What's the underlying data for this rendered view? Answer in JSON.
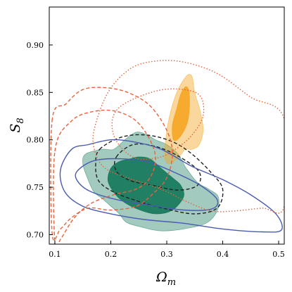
{
  "chart_data": {
    "type": "contour",
    "title": "",
    "xlabel": "Ω",
    "xlabel_sub": "m",
    "ylabel": "S",
    "ylabel_sub": "8",
    "xlim": [
      0.09,
      0.51
    ],
    "ylim": [
      0.69,
      0.94
    ],
    "xticks": [
      {
        "value": 0.1,
        "label": "0.1"
      },
      {
        "value": 0.2,
        "label": "0.2"
      },
      {
        "value": 0.3,
        "label": "0.3"
      },
      {
        "value": 0.4,
        "label": "0.4"
      },
      {
        "value": 0.5,
        "label": "0.5"
      }
    ],
    "yticks": [
      {
        "value": 0.7,
        "label": "0.70"
      },
      {
        "value": 0.75,
        "label": "0.75"
      },
      {
        "value": 0.8,
        "label": "0.80"
      },
      {
        "value": 0.85,
        "label": "0.85"
      },
      {
        "value": 0.9,
        "label": "0.90"
      }
    ],
    "grid": false,
    "legend": "none",
    "series": [
      {
        "id": "green-filled",
        "style": "filled",
        "color": "#1a7a5e",
        "contours": [
          {
            "level": "outer",
            "opacity": 0.4,
            "points": [
              [
                0.205,
                0.79
              ],
              [
                0.185,
                0.79
              ],
              [
                0.155,
                0.785
              ],
              [
                0.15,
                0.775
              ],
              [
                0.158,
                0.76
              ],
              [
                0.17,
                0.745
              ],
              [
                0.185,
                0.738
              ],
              [
                0.2,
                0.73
              ],
              [
                0.215,
                0.722
              ],
              [
                0.228,
                0.713
              ],
              [
                0.255,
                0.708
              ],
              [
                0.29,
                0.704
              ],
              [
                0.33,
                0.706
              ],
              [
                0.37,
                0.712
              ],
              [
                0.39,
                0.725
              ],
              [
                0.392,
                0.74
              ],
              [
                0.375,
                0.748
              ],
              [
                0.355,
                0.755
              ],
              [
                0.335,
                0.77
              ],
              [
                0.32,
                0.785
              ],
              [
                0.3,
                0.795
              ],
              [
                0.28,
                0.8
              ],
              [
                0.262,
                0.806
              ],
              [
                0.245,
                0.808
              ],
              [
                0.225,
                0.8
              ]
            ]
          },
          {
            "level": "inner",
            "opacity": 0.95,
            "points": [
              [
                0.235,
                0.78
              ],
              [
                0.215,
                0.777
              ],
              [
                0.2,
                0.77
              ],
              [
                0.195,
                0.757
              ],
              [
                0.205,
                0.745
              ],
              [
                0.222,
                0.735
              ],
              [
                0.248,
                0.727
              ],
              [
                0.28,
                0.722
              ],
              [
                0.31,
                0.726
              ],
              [
                0.33,
                0.74
              ],
              [
                0.325,
                0.752
              ],
              [
                0.31,
                0.76
              ],
              [
                0.29,
                0.77
              ],
              [
                0.27,
                0.78
              ],
              [
                0.25,
                0.782
              ]
            ]
          }
        ]
      },
      {
        "id": "orange-filled",
        "style": "filled",
        "color": "#f5a623",
        "contours": [
          {
            "level": "outer",
            "opacity": 0.45,
            "points": [
              [
                0.335,
                0.867
              ],
              [
                0.345,
                0.867
              ],
              [
                0.35,
                0.85
              ],
              [
                0.36,
                0.83
              ],
              [
                0.365,
                0.81
              ],
              [
                0.358,
                0.795
              ],
              [
                0.345,
                0.79
              ],
              [
                0.333,
                0.79
              ],
              [
                0.322,
                0.782
              ],
              [
                0.305,
                0.775
              ],
              [
                0.297,
                0.78
              ],
              [
                0.298,
                0.8
              ],
              [
                0.305,
                0.825
              ],
              [
                0.318,
                0.85
              ]
            ]
          },
          {
            "level": "inner",
            "opacity": 0.9,
            "points": [
              [
                0.334,
                0.856
              ],
              [
                0.34,
                0.85
              ],
              [
                0.34,
                0.83
              ],
              [
                0.335,
                0.815
              ],
              [
                0.322,
                0.802
              ],
              [
                0.312,
                0.8
              ],
              [
                0.31,
                0.815
              ],
              [
                0.318,
                0.833
              ],
              [
                0.325,
                0.848
              ]
            ]
          }
        ]
      },
      {
        "id": "black-dashed",
        "style": "dashed",
        "color": "#222222",
        "contours": [
          {
            "level": "outer",
            "points": [
              [
                0.18,
                0.79
              ],
              [
                0.22,
                0.803
              ],
              [
                0.265,
                0.805
              ],
              [
                0.31,
                0.798
              ],
              [
                0.345,
                0.785
              ],
              [
                0.38,
                0.765
              ],
              [
                0.4,
                0.748
              ],
              [
                0.39,
                0.728
              ],
              [
                0.35,
                0.722
              ],
              [
                0.3,
                0.727
              ],
              [
                0.25,
                0.735
              ],
              [
                0.205,
                0.745
              ],
              [
                0.178,
                0.757
              ],
              [
                0.173,
                0.775
              ]
            ]
          },
          {
            "level": "inner",
            "points": [
              [
                0.21,
                0.782
              ],
              [
                0.24,
                0.795
              ],
              [
                0.28,
                0.793
              ],
              [
                0.32,
                0.783
              ],
              [
                0.357,
                0.767
              ],
              [
                0.355,
                0.752
              ],
              [
                0.32,
                0.747
              ],
              [
                0.275,
                0.752
              ],
              [
                0.235,
                0.757
              ],
              [
                0.21,
                0.767
              ]
            ]
          }
        ]
      },
      {
        "id": "blue-solid",
        "style": "solid",
        "color": "#4a5cb0",
        "contours": [
          {
            "level": "outer",
            "points": [
              [
                0.13,
                0.79
              ],
              [
                0.16,
                0.795
              ],
              [
                0.2,
                0.8
              ],
              [
                0.24,
                0.798
              ],
              [
                0.29,
                0.79
              ],
              [
                0.345,
                0.772
              ],
              [
                0.4,
                0.758
              ],
              [
                0.45,
                0.742
              ],
              [
                0.495,
                0.722
              ],
              [
                0.505,
                0.705
              ],
              [
                0.47,
                0.703
              ],
              [
                0.4,
                0.706
              ],
              [
                0.33,
                0.712
              ],
              [
                0.26,
                0.716
              ],
              [
                0.2,
                0.722
              ],
              [
                0.15,
                0.73
              ],
              [
                0.118,
                0.745
              ],
              [
                0.11,
                0.768
              ]
            ]
          },
          {
            "level": "inner",
            "points": [
              [
                0.14,
                0.767
              ],
              [
                0.17,
                0.778
              ],
              [
                0.22,
                0.78
              ],
              [
                0.27,
                0.776
              ],
              [
                0.32,
                0.764
              ],
              [
                0.36,
                0.752
              ],
              [
                0.39,
                0.737
              ],
              [
                0.38,
                0.727
              ],
              [
                0.33,
                0.726
              ],
              [
                0.27,
                0.731
              ],
              [
                0.21,
                0.737
              ],
              [
                0.162,
                0.746
              ],
              [
                0.14,
                0.757
              ]
            ]
          }
        ]
      },
      {
        "id": "red-dotted",
        "style": "dotted",
        "color": "#e8633d",
        "contours": [
          {
            "level": "outer",
            "points": [
              [
                0.17,
                0.81
              ],
              [
                0.195,
                0.85
              ],
              [
                0.235,
                0.875
              ],
              [
                0.28,
                0.883
              ],
              [
                0.33,
                0.882
              ],
              [
                0.39,
                0.87
              ],
              [
                0.45,
                0.845
              ],
              [
                0.51,
                0.822
              ],
              [
                0.51,
                0.73
              ],
              [
                0.47,
                0.728
              ],
              [
                0.42,
                0.725
              ],
              [
                0.38,
                0.725
              ],
              [
                0.335,
                0.735
              ],
              [
                0.29,
                0.748
              ],
              [
                0.23,
                0.76
              ],
              [
                0.19,
                0.77
              ],
              [
                0.172,
                0.787
              ]
            ]
          },
          {
            "level": "inner",
            "points": [
              [
                0.205,
                0.826
              ],
              [
                0.23,
                0.84
              ],
              [
                0.285,
                0.852
              ],
              [
                0.33,
                0.853
              ],
              [
                0.36,
                0.846
              ],
              [
                0.365,
                0.825
              ],
              [
                0.345,
                0.805
              ],
              [
                0.32,
                0.792
              ],
              [
                0.29,
                0.782
              ],
              [
                0.25,
                0.78
              ],
              [
                0.225,
                0.788
              ],
              [
                0.205,
                0.805
              ]
            ]
          }
        ]
      },
      {
        "id": "red-dashed",
        "style": "dashed",
        "color": "#e8633d",
        "contours": [
          {
            "level": "outer",
            "points": [
              [
                0.095,
                0.82
              ],
              [
                0.12,
                0.838
              ],
              [
                0.15,
                0.853
              ],
              [
                0.19,
                0.855
              ],
              [
                0.23,
                0.85
              ],
              [
                0.27,
                0.836
              ],
              [
                0.3,
                0.81
              ],
              [
                0.31,
                0.785
              ],
              [
                0.3,
                0.76
              ],
              [
                0.275,
                0.743
              ],
              [
                0.245,
                0.73
              ],
              [
                0.2,
                0.726
              ],
              [
                0.16,
                0.728
              ],
              [
                0.13,
                0.718
              ],
              [
                0.11,
                0.706
              ],
              [
                0.095,
                0.702
              ]
            ]
          },
          {
            "level": "inner",
            "points": [
              [
                0.1,
                0.788
              ],
              [
                0.13,
                0.82
              ],
              [
                0.17,
                0.83
              ],
              [
                0.21,
                0.83
              ],
              [
                0.245,
                0.82
              ],
              [
                0.27,
                0.8
              ],
              [
                0.28,
                0.78
              ],
              [
                0.27,
                0.76
              ],
              [
                0.245,
                0.748
              ],
              [
                0.205,
                0.742
              ],
              [
                0.165,
                0.733
              ],
              [
                0.135,
                0.718
              ],
              [
                0.11,
                0.695
              ],
              [
                0.1,
                0.69
              ]
            ]
          }
        ]
      }
    ]
  }
}
